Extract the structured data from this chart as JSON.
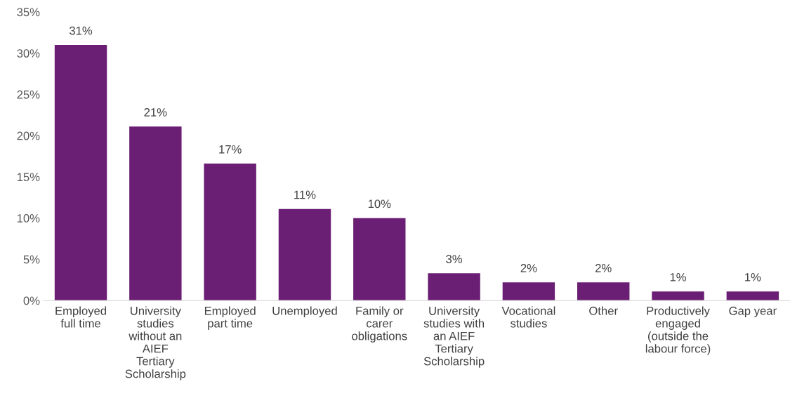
{
  "chart_data": {
    "type": "bar",
    "categories": [
      "Employed\nfull time",
      "University\nstudies\nwithout an\nAIEF\nTertiary\nScholarship",
      "Employed\npart time",
      "Unemployed",
      "Family or\ncarer\nobligations",
      "University\nstudies with\nan AIEF\nTertiary\nScholarship",
      "Vocational\nstudies",
      "Other",
      "Productively\nengaged\n(outside the\nlabour force)",
      "Gap year"
    ],
    "values": [
      31.0,
      21.1,
      16.6,
      11.1,
      10.0,
      3.3,
      2.2,
      2.2,
      1.1,
      1.1
    ],
    "value_labels": [
      "31%",
      "21%",
      "17%",
      "11%",
      "10%",
      "3%",
      "2%",
      "2%",
      "1%",
      "1%"
    ],
    "color": "#6b1f74",
    "ylim": [
      0,
      35
    ],
    "yticks": [
      {
        "value": 0,
        "label": "0%"
      },
      {
        "value": 5,
        "label": "5%"
      },
      {
        "value": 10,
        "label": "10%"
      },
      {
        "value": 15,
        "label": "15%"
      },
      {
        "value": 20,
        "label": "20%"
      },
      {
        "value": 25,
        "label": "25%"
      },
      {
        "value": 30,
        "label": "30%"
      },
      {
        "value": 35,
        "label": "35%"
      }
    ],
    "grid": false,
    "legend": false
  }
}
